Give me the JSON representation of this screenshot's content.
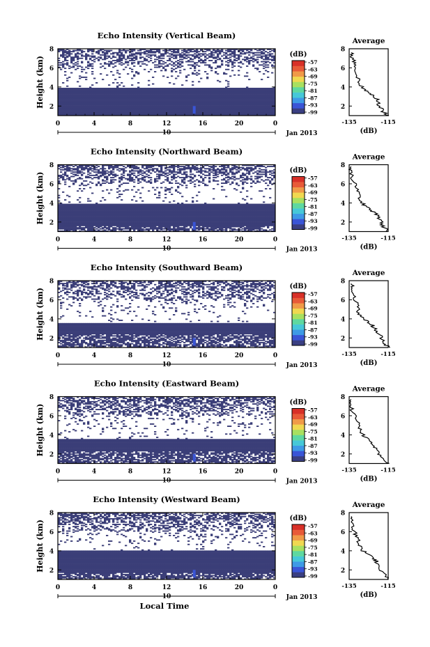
{
  "figure": {
    "date_label": "Jan 2013",
    "date_day": "10",
    "xaxis_label": "Local Time",
    "colorbar_unit": "(dB)",
    "colorbar_ticks": [
      "-57",
      "-63",
      "-69",
      "-75",
      "-81",
      "-87",
      "-93",
      "-99"
    ],
    "colorbar_colors": [
      "#3a3f82",
      "#3a55d6",
      "#3e9ae6",
      "#46c8d8",
      "#5ed8a0",
      "#a8e060",
      "#f0d850",
      "#f09a48",
      "#e85a38",
      "#d83028"
    ],
    "blank_color": "#3b3e78",
    "average_title": "Average",
    "average_xlabel": "(dB)",
    "average_xticks": [
      "-135",
      "-115"
    ],
    "average_yticks": [
      "2",
      "4",
      "6",
      "8"
    ]
  },
  "chart_data": [
    {
      "type": "heatmap",
      "title": "Echo Intensity (Vertical Beam)",
      "xlabel": "",
      "ylabel": "Height (km)",
      "xlim": [
        0,
        24
      ],
      "ylim": [
        1,
        8
      ],
      "xticks": [
        "0",
        "4",
        "8",
        "12",
        "16",
        "20",
        "0"
      ],
      "yticks": [
        "2",
        "4",
        "6",
        "8"
      ],
      "solid_layer_km": [
        1.0,
        3.9
      ],
      "average": {
        "xlim": [
          -135,
          -115
        ],
        "ylim": [
          1,
          8
        ],
        "profile": [
          [
            -115,
            1.0
          ],
          [
            -118,
            1.5
          ],
          [
            -120,
            2.2
          ],
          [
            -121,
            2.8
          ],
          [
            -124,
            3.3
          ],
          [
            -128,
            3.8
          ],
          [
            -130,
            4.5
          ],
          [
            -131,
            5.5
          ],
          [
            -132,
            6.3
          ],
          [
            -133,
            7.0
          ],
          [
            -134,
            7.6
          ]
        ]
      }
    },
    {
      "type": "heatmap",
      "title": "Echo Intensity (Northward Beam)",
      "xlabel": "",
      "ylabel": "Height (km)",
      "xlim": [
        0,
        24
      ],
      "ylim": [
        1,
        8
      ],
      "xticks": [
        "0",
        "4",
        "8",
        "12",
        "16",
        "20",
        "0"
      ],
      "yticks": [
        "2",
        "4",
        "6",
        "8"
      ],
      "solid_layer_km": [
        1.6,
        3.9
      ],
      "average": {
        "xlim": [
          -135,
          -115
        ],
        "ylim": [
          1,
          8
        ],
        "profile": [
          [
            -115,
            1.0
          ],
          [
            -118,
            1.6
          ],
          [
            -119,
            2.2
          ],
          [
            -121,
            2.8
          ],
          [
            -124,
            3.3
          ],
          [
            -128,
            3.9
          ],
          [
            -130,
            4.6
          ],
          [
            -131,
            5.4
          ],
          [
            -133,
            6.3
          ],
          [
            -134,
            7.2
          ],
          [
            -134,
            7.8
          ]
        ]
      }
    },
    {
      "type": "heatmap",
      "title": "Echo Intensity (Southward Beam)",
      "xlabel": "",
      "ylabel": "Height (km)",
      "xlim": [
        0,
        24
      ],
      "ylim": [
        1,
        8
      ],
      "xticks": [
        "0",
        "4",
        "8",
        "12",
        "16",
        "20",
        "0"
      ],
      "yticks": [
        "2",
        "4",
        "6",
        "8"
      ],
      "solid_layer_km": [
        2.4,
        3.6
      ],
      "average": {
        "xlim": [
          -135,
          -115
        ],
        "ylim": [
          1,
          8
        ],
        "profile": [
          [
            -115,
            1.0
          ],
          [
            -117,
            1.5
          ],
          [
            -119,
            2.2
          ],
          [
            -121,
            2.8
          ],
          [
            -123,
            3.3
          ],
          [
            -127,
            3.9
          ],
          [
            -130,
            4.6
          ],
          [
            -131,
            5.4
          ],
          [
            -132,
            6.2
          ],
          [
            -133,
            7.0
          ],
          [
            -134,
            7.7
          ]
        ]
      }
    },
    {
      "type": "heatmap",
      "title": "Echo Intensity (Eastward Beam)",
      "xlabel": "",
      "ylabel": "Height (km)",
      "xlim": [
        0,
        24
      ],
      "ylim": [
        1,
        8
      ],
      "xticks": [
        "0",
        "4",
        "8",
        "12",
        "16",
        "20",
        "0"
      ],
      "yticks": [
        "2",
        "4",
        "6",
        "8"
      ],
      "solid_layer_km": [
        2.3,
        3.6
      ],
      "average": {
        "xlim": [
          -135,
          -115
        ],
        "ylim": [
          1,
          8
        ],
        "profile": [
          [
            -115,
            1.0
          ],
          [
            -118,
            1.5
          ],
          [
            -120,
            2.2
          ],
          [
            -122,
            2.8
          ],
          [
            -124,
            3.4
          ],
          [
            -128,
            4.0
          ],
          [
            -130,
            4.7
          ],
          [
            -131,
            5.5
          ],
          [
            -133,
            6.2
          ],
          [
            -134,
            7.0
          ],
          [
            -134,
            7.7
          ]
        ]
      }
    },
    {
      "type": "heatmap",
      "title": "Echo Intensity (Westward Beam)",
      "xlabel": "Local Time",
      "ylabel": "Height (km)",
      "xlim": [
        0,
        24
      ],
      "ylim": [
        1,
        8
      ],
      "xticks": [
        "0",
        "4",
        "8",
        "12",
        "16",
        "20",
        "0"
      ],
      "yticks": [
        "2",
        "4",
        "6",
        "8"
      ],
      "solid_layer_km": [
        1.7,
        4.0
      ],
      "average": {
        "xlim": [
          -135,
          -115
        ],
        "ylim": [
          1,
          8
        ],
        "profile": [
          [
            -115,
            1.0
          ],
          [
            -117,
            1.6
          ],
          [
            -120,
            2.3
          ],
          [
            -121,
            2.9
          ],
          [
            -124,
            3.4
          ],
          [
            -128,
            4.0
          ],
          [
            -130,
            4.7
          ],
          [
            -131,
            5.5
          ],
          [
            -133,
            6.2
          ],
          [
            -134,
            7.0
          ],
          [
            -134,
            7.6
          ]
        ]
      }
    }
  ]
}
